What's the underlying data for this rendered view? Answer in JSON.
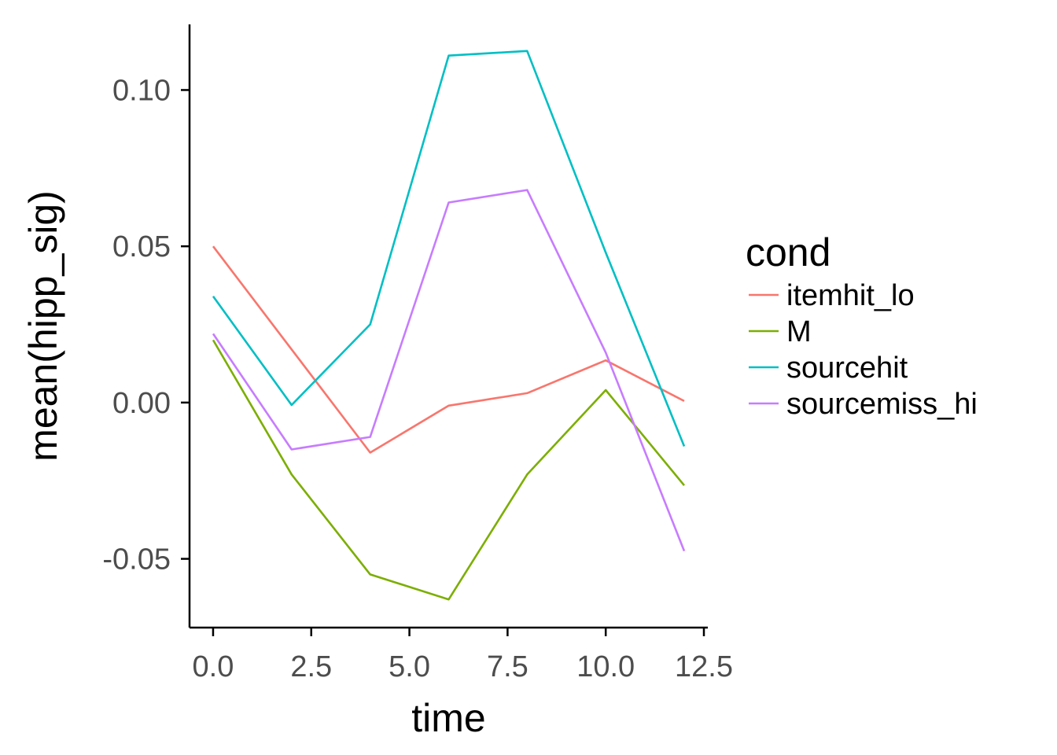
{
  "chart_data": {
    "type": "line",
    "xlabel": "time",
    "ylabel": "mean(hipp_sig)",
    "xlim": [
      -0.6,
      12.6
    ],
    "ylim": [
      -0.072,
      0.121
    ],
    "x_ticks": [
      0.0,
      2.5,
      5.0,
      7.5,
      10.0,
      12.5
    ],
    "x_tick_labels": [
      "0.0",
      "2.5",
      "5.0",
      "7.5",
      "10.0",
      "12.5"
    ],
    "y_ticks": [
      -0.05,
      0.0,
      0.05,
      0.1
    ],
    "y_tick_labels": [
      "-0.05",
      "0.00",
      "0.05",
      "0.10"
    ],
    "grid": false,
    "legend": {
      "title": "cond",
      "position": "right"
    },
    "x": [
      0,
      2,
      4,
      6,
      8,
      10,
      12
    ],
    "series": [
      {
        "name": "itemhit_lo",
        "color": "#F8766D",
        "values": [
          0.05,
          0.017,
          -0.016,
          -0.001,
          0.003,
          0.0135,
          0.0005
        ]
      },
      {
        "name": "M",
        "color": "#7CAE00",
        "values": [
          0.02,
          -0.023,
          -0.055,
          -0.063,
          -0.023,
          0.004,
          -0.0265
        ]
      },
      {
        "name": "sourcehit",
        "color": "#00BFC4",
        "values": [
          0.034,
          -0.0008,
          0.025,
          0.111,
          0.1125,
          0.048,
          -0.014
        ]
      },
      {
        "name": "sourcemiss_hi",
        "color": "#C77CFF",
        "values": [
          0.022,
          -0.015,
          -0.011,
          0.064,
          0.068,
          0.016,
          -0.0475
        ]
      }
    ]
  }
}
